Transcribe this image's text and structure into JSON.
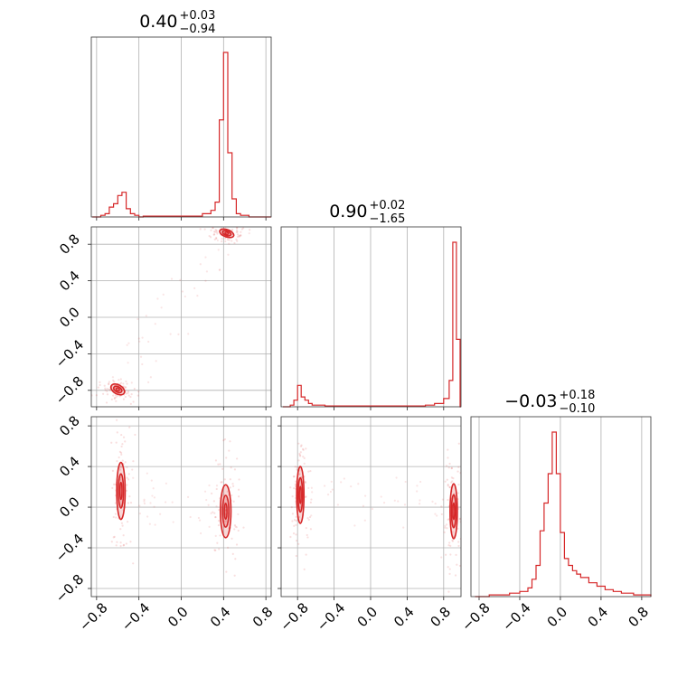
{
  "chart_data": {
    "type": "corner",
    "color": "#d62728",
    "parameters": [
      {
        "median": "0.40",
        "plus": "+0.03",
        "minus": "−0.94"
      },
      {
        "median": "0.90",
        "plus": "+0.02",
        "minus": "−1.65"
      },
      {
        "median": "−0.03",
        "plus": "+0.18",
        "minus": "−0.10"
      }
    ],
    "ranges": [
      [
        -0.85,
        0.85
      ],
      [
        -0.98,
        0.99
      ],
      [
        -0.88,
        0.89
      ]
    ],
    "ticks": [
      -0.8,
      -0.4,
      0.0,
      0.4,
      0.8
    ],
    "tick_labels": [
      "−0.8",
      "−0.4",
      "0.0",
      "0.4",
      "0.8"
    ],
    "histograms": [
      {
        "param": 0,
        "x": [
          -0.84,
          -0.8,
          -0.76,
          -0.72,
          -0.68,
          -0.64,
          -0.6,
          -0.56,
          -0.52,
          -0.48,
          -0.44,
          -0.4,
          -0.36,
          -0.2,
          -0.1,
          0.0,
          0.1,
          0.2,
          0.28,
          0.32,
          0.36,
          0.4,
          0.44,
          0.48,
          0.52,
          0.56,
          0.64,
          0.8
        ],
        "density": [
          0.0,
          0.0,
          0.01,
          0.02,
          0.06,
          0.08,
          0.13,
          0.15,
          0.05,
          0.02,
          0.01,
          0.0,
          0.005,
          0.005,
          0.005,
          0.005,
          0.005,
          0.02,
          0.04,
          0.09,
          0.59,
          1.0,
          0.39,
          0.11,
          0.02,
          0.01,
          0.0,
          0.0
        ]
      },
      {
        "param": 1,
        "x": [
          -0.96,
          -0.88,
          -0.84,
          -0.8,
          -0.76,
          -0.72,
          -0.68,
          -0.64,
          -0.6,
          -0.5,
          -0.3,
          0.0,
          0.4,
          0.6,
          0.7,
          0.8,
          0.86,
          0.9,
          0.94,
          0.98
        ],
        "density": [
          0.0,
          0.01,
          0.04,
          0.13,
          0.06,
          0.04,
          0.02,
          0.01,
          0.01,
          0.005,
          0.005,
          0.005,
          0.005,
          0.01,
          0.02,
          0.05,
          0.16,
          1.0,
          0.41,
          0.0
        ]
      },
      {
        "param": 2,
        "x": [
          -0.84,
          -0.7,
          -0.6,
          -0.5,
          -0.4,
          -0.32,
          -0.28,
          -0.24,
          -0.2,
          -0.16,
          -0.12,
          -0.08,
          -0.04,
          0.0,
          0.04,
          0.08,
          0.12,
          0.16,
          0.2,
          0.28,
          0.36,
          0.44,
          0.52,
          0.6,
          0.72,
          0.84
        ],
        "density": [
          0.0,
          0.01,
          0.01,
          0.02,
          0.03,
          0.05,
          0.1,
          0.18,
          0.38,
          0.54,
          0.71,
          0.95,
          0.71,
          0.37,
          0.22,
          0.18,
          0.15,
          0.13,
          0.11,
          0.08,
          0.06,
          0.04,
          0.03,
          0.02,
          0.01,
          0.01
        ]
      }
    ],
    "scatter_panels": [
      {
        "x_param": 0,
        "y_param": 1,
        "clusters": [
          {
            "cx": 0.43,
            "cy": 0.92,
            "rx": 0.07,
            "ry": 0.04
          },
          {
            "cx": -0.6,
            "cy": -0.79,
            "rx": 0.07,
            "ry": 0.05
          }
        ]
      },
      {
        "x_param": 0,
        "y_param": 2,
        "clusters": [
          {
            "cx": -0.57,
            "cy": 0.16,
            "rx": 0.04,
            "ry": 0.28
          },
          {
            "cx": 0.42,
            "cy": -0.04,
            "rx": 0.05,
            "ry": 0.26
          }
        ]
      },
      {
        "x_param": 1,
        "y_param": 2,
        "clusters": [
          {
            "cx": -0.77,
            "cy": 0.12,
            "rx": 0.04,
            "ry": 0.28
          },
          {
            "cx": 0.91,
            "cy": -0.04,
            "rx": 0.04,
            "ry": 0.27
          }
        ]
      }
    ]
  }
}
